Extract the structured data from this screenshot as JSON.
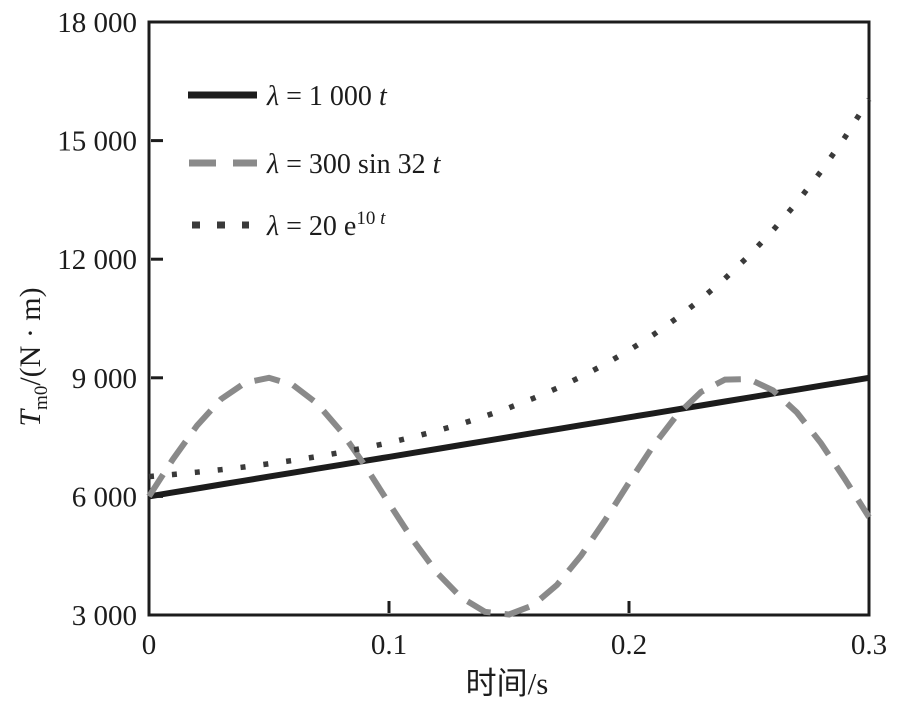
{
  "figure": {
    "background": "#ffffff",
    "axis_color": "#1c1c1c"
  },
  "chart_data": {
    "type": "line",
    "title": "",
    "xlabel": "时间/s",
    "ylabel": "T_m0/(N · m)",
    "xlim": [
      0,
      0.3
    ],
    "ylim": [
      3000,
      18000
    ],
    "grid": false,
    "legend_position": "upper-left-inside",
    "x_ticks": [
      0,
      0.1,
      0.2,
      0.3
    ],
    "x_tick_labels": [
      "0",
      "0.1",
      "0.2",
      "0.3"
    ],
    "y_ticks": [
      3000,
      6000,
      9000,
      12000,
      15000,
      18000
    ],
    "y_tick_labels": [
      "3 000",
      "6 000",
      "9 000",
      "12 000",
      "15 000",
      "18 000"
    ],
    "x": [
      0,
      0.01,
      0.02,
      0.03,
      0.04,
      0.05,
      0.06,
      0.07,
      0.08,
      0.09,
      0.1,
      0.11,
      0.12,
      0.13,
      0.14,
      0.15,
      0.16,
      0.17,
      0.18,
      0.19,
      0.2,
      0.21,
      0.22,
      0.23,
      0.24,
      0.25,
      0.26,
      0.27,
      0.28,
      0.29,
      0.3
    ],
    "series": [
      {
        "name": "lambda-1000t",
        "label": "λ = 1 000 t",
        "line_style": "solid",
        "color": "#1c1c1c",
        "values": [
          6000,
          6100,
          6200,
          6300,
          6400,
          6500,
          6600,
          6700,
          6800,
          6900,
          7000,
          7100,
          7200,
          7300,
          7400,
          7500,
          7600,
          7700,
          7800,
          7900,
          8000,
          8100,
          8200,
          8300,
          8400,
          8500,
          8600,
          8700,
          8800,
          8900,
          9000
        ]
      },
      {
        "name": "lambda-300sin32t",
        "label": "λ = 300 sin 32 t",
        "line_style": "dashed",
        "color": "#8a8a8a",
        "values": [
          6000,
          6944,
          7792,
          8458,
          8874,
          8999,
          8818,
          8353,
          7648,
          6776,
          5825,
          4892,
          4071,
          3444,
          3080,
          3012,
          3245,
          3761,
          4501,
          5395,
          6350,
          7269,
          8060,
          8641,
          8955,
          8968,
          8681,
          8120,
          7345,
          6433,
          5477
        ]
      },
      {
        "name": "lambda-20e10t",
        "label": "λ = 20 e^(10t)",
        "line_style": "dotted",
        "color": "#3a3a3a",
        "values": [
          6500,
          6553,
          6611,
          6675,
          6746,
          6824,
          6911,
          7007,
          7113,
          7230,
          7359,
          7502,
          7660,
          7835,
          8028,
          8241,
          8477,
          8737,
          9025,
          9343,
          9695,
          10083,
          10513,
          10987,
          11512,
          12091,
          12732,
          13440,
          14222,
          15087,
          16043
        ]
      }
    ]
  },
  "legend": {
    "items": [
      {
        "sym": "λ",
        "mid": " = 1 000 ",
        "var": "t"
      },
      {
        "sym": "λ",
        "mid": " = 300 sin 32 ",
        "var": "t"
      },
      {
        "sym": "λ",
        "mid": " = 20 e",
        "sup_num": "10 ",
        "sup_var": "t"
      }
    ]
  },
  "axes": {
    "x_label": "时间/s",
    "y_label": {
      "symbol": "T",
      "subscript": "m0",
      "rest": "/(N · m)"
    }
  }
}
